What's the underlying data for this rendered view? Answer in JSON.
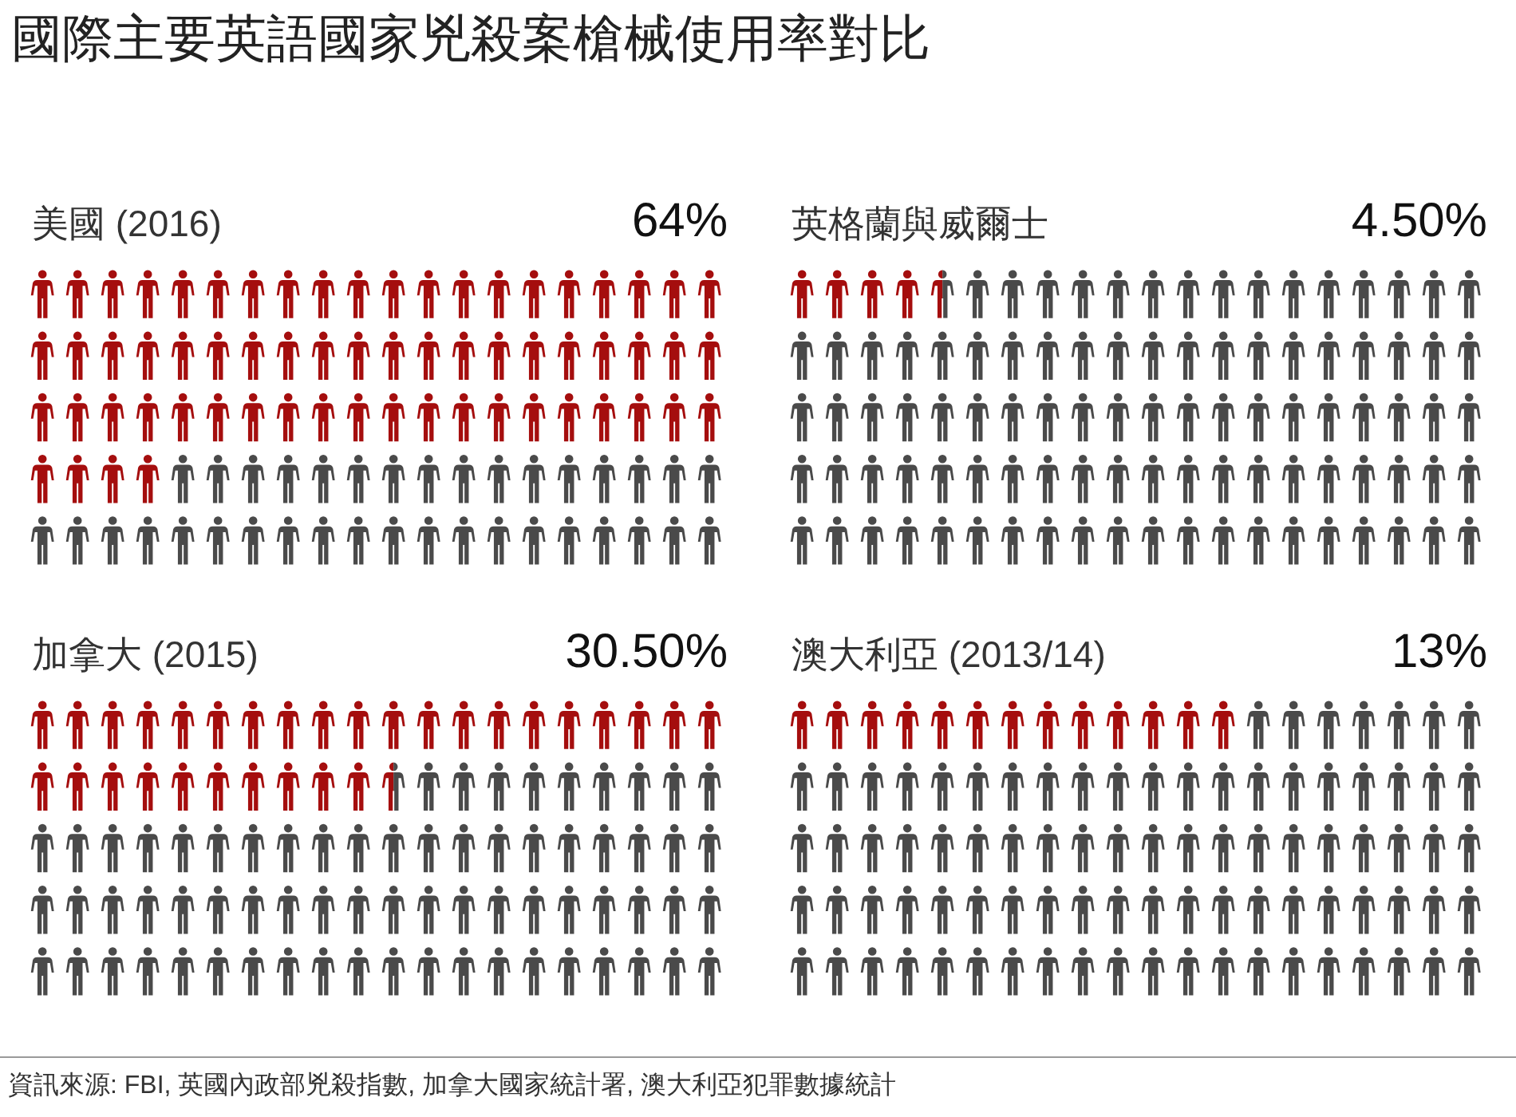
{
  "chart_data": [
    {
      "type": "other",
      "title": "國際主要英語國家兇殺案槍械使用率對比",
      "annotations": [
        "資訊來源: FBI, 英國內政部兇殺指數, 加拿大國家統計署, 澳大利亞犯罪數據統計"
      ]
    },
    {
      "type": "other",
      "title": "美國 (2016)",
      "values": [
        64
      ],
      "value_labels": [
        "64%"
      ],
      "colors": [
        "#a50e0e"
      ]
    },
    {
      "type": "other",
      "title": "英格蘭與威爾士",
      "values": [
        4.5
      ],
      "value_labels": [
        "4.50%"
      ],
      "colors": [
        "#a50e0e"
      ]
    },
    {
      "type": "other",
      "title": "加拿大 (2015)",
      "values": [
        30.5
      ],
      "value_labels": [
        "30.50%"
      ],
      "colors": [
        "#a50e0e"
      ]
    },
    {
      "type": "other",
      "title": "澳大利亞 (2013/14)",
      "values": [
        13
      ],
      "value_labels": [
        "13%"
      ],
      "colors": [
        "#a50e0e"
      ]
    }
  ]
}
